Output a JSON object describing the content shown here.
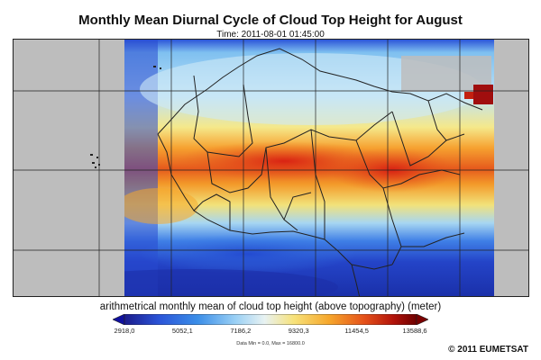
{
  "title": "Monthly Mean Diurnal Cycle of Cloud Top Height for August",
  "timestamp": "Time: 2011-08-01 01:45:00",
  "colorbar": {
    "title": "arithmetrical monthly mean of cloud top height (above topography) (meter)",
    "ticks": [
      "2918,0",
      "5052,1",
      "7186,2",
      "9320,3",
      "11454,5",
      "13588,6"
    ],
    "data_range": "Data Min = 0.0,  Max = 16800.0",
    "colors": {
      "low_arrow": "#1010a0",
      "high_arrow": "#7a0000",
      "stops": [
        "#1c1c8c",
        "#2b55d8",
        "#3b8ee8",
        "#9ad0f5",
        "#e8f2f2",
        "#f7e27a",
        "#f6a72c",
        "#e5521a",
        "#b3140b",
        "#6e0000"
      ]
    }
  },
  "copyright": "© 2011 EUMETSAT",
  "map": {
    "colors": {
      "no_data": "#bdbdbd",
      "borders": "#222222",
      "grid": "#222222"
    }
  }
}
